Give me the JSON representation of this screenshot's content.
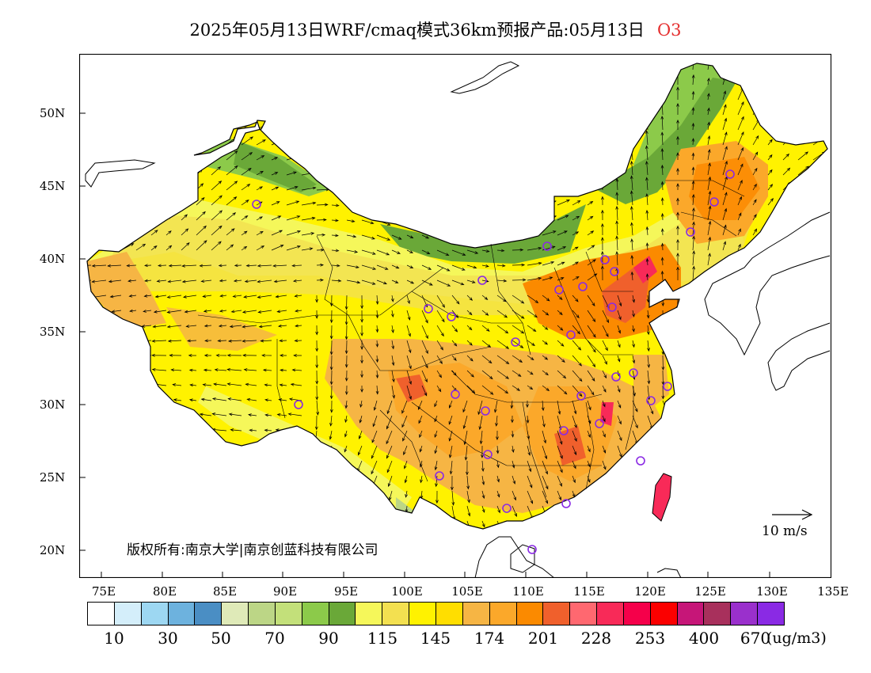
{
  "title": {
    "main": "2025年05月13日WRF/cmaq模式36km预报产品:05月13日",
    "species": "O3"
  },
  "map": {
    "lat_labels": [
      "50N",
      "45N",
      "40N",
      "35N",
      "30N",
      "25N",
      "20N"
    ],
    "lon_labels": [
      "75E",
      "80E",
      "85E",
      "90E",
      "95E",
      "100E",
      "105E",
      "110E",
      "115E",
      "120E",
      "125E",
      "130E",
      "135E"
    ],
    "copyright": "版权所有:南京大学|南京创蓝科技有限公司",
    "wind_scale_label": "10 m/s"
  },
  "colorbar": {
    "colors": [
      "#ffffff",
      "#d4eefa",
      "#9dd7f2",
      "#6db2de",
      "#4a8ec4",
      "#dfeab8",
      "#bcd686",
      "#c3e07a",
      "#8cca4a",
      "#6aa838",
      "#f5f75a",
      "#f3e050",
      "#fff200",
      "#ffde00",
      "#f6b544",
      "#fba82a",
      "#fb8a00",
      "#f0602c",
      "#ff6870",
      "#f82a58",
      "#f5004a",
      "#fb0000",
      "#c61678",
      "#a8305c",
      "#9a30cc",
      "#8a2ae4"
    ],
    "labels": [
      "10",
      "30",
      "50",
      "70",
      "90",
      "115",
      "145",
      "174",
      "201",
      "228",
      "253",
      "400",
      "670"
    ],
    "unit": "(ug/m3)"
  }
}
